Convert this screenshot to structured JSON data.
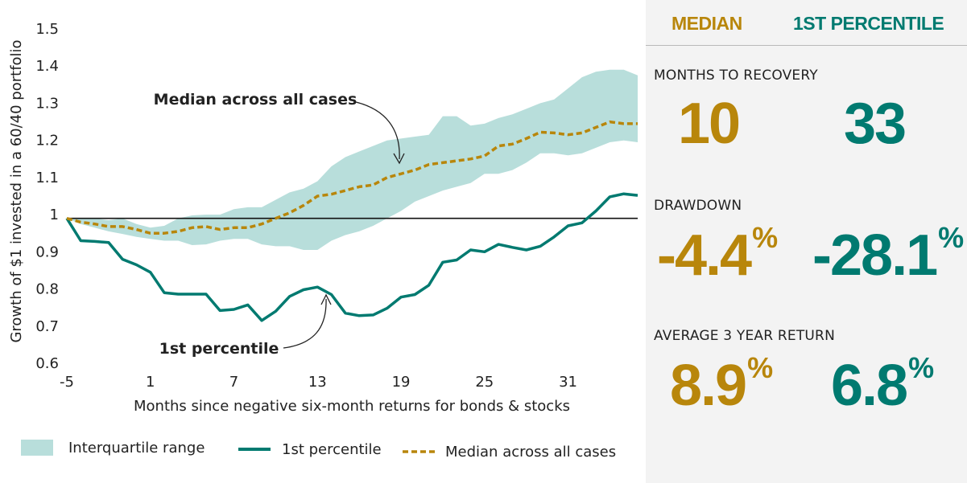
{
  "colors": {
    "median": "#b8860b",
    "percentile": "#007a70",
    "band": "#b8dedb",
    "ref_line": "#111111"
  },
  "chart_data": {
    "type": "line",
    "xlabel": "Months since negative six-month returns for bonds & stocks",
    "ylabel": "Growth of $1 invested in a 60/40 portfolio",
    "xlim": [
      -5,
      36
    ],
    "ylim": [
      0.6,
      1.5
    ],
    "x_ticks": [
      "-5",
      "1",
      "7",
      "13",
      "19",
      "25",
      "31"
    ],
    "y_ticks": [
      "0.6",
      "0.7",
      "0.8",
      "0.9",
      "1",
      "1.1",
      "1.2",
      "1.3",
      "1.4",
      "1.5"
    ],
    "reference_line": 0.99,
    "x": [
      -5,
      -4,
      -3,
      -2,
      -1,
      0,
      1,
      2,
      3,
      4,
      5,
      6,
      7,
      8,
      9,
      10,
      11,
      12,
      13,
      14,
      15,
      16,
      17,
      18,
      19,
      20,
      21,
      22,
      23,
      24,
      25,
      26,
      27,
      28,
      29,
      30,
      31,
      32,
      33,
      34,
      35,
      36
    ],
    "series": [
      {
        "name": "1st percentile",
        "style": "solid",
        "values": [
          0.99,
          0.93,
          0.928,
          0.925,
          0.88,
          0.865,
          0.845,
          0.79,
          0.786,
          0.786,
          0.786,
          0.742,
          0.745,
          0.757,
          0.715,
          0.74,
          0.78,
          0.798,
          0.805,
          0.785,
          0.735,
          0.728,
          0.73,
          0.748,
          0.778,
          0.785,
          0.81,
          0.872,
          0.878,
          0.905,
          0.9,
          0.92,
          0.912,
          0.905,
          0.915,
          0.94,
          0.97,
          0.978,
          1.01,
          1.048,
          1.056,
          1.052
        ]
      },
      {
        "name": "Median across all cases",
        "style": "dashed",
        "values": [
          0.99,
          0.98,
          0.975,
          0.968,
          0.968,
          0.96,
          0.95,
          0.95,
          0.955,
          0.965,
          0.968,
          0.96,
          0.965,
          0.965,
          0.975,
          0.99,
          1.005,
          1.025,
          1.05,
          1.055,
          1.065,
          1.075,
          1.08,
          1.1,
          1.11,
          1.12,
          1.135,
          1.14,
          1.145,
          1.15,
          1.158,
          1.185,
          1.19,
          1.205,
          1.222,
          1.22,
          1.215,
          1.22,
          1.235,
          1.25,
          1.245,
          1.245
        ]
      },
      {
        "name": "Interquartile range",
        "style": "band",
        "upper": [
          0.99,
          0.99,
          0.99,
          0.985,
          0.99,
          0.975,
          0.965,
          0.97,
          0.99,
          0.998,
          1.0,
          1.0,
          1.015,
          1.02,
          1.02,
          1.04,
          1.06,
          1.07,
          1.09,
          1.13,
          1.155,
          1.17,
          1.185,
          1.2,
          1.205,
          1.21,
          1.215,
          1.265,
          1.265,
          1.24,
          1.245,
          1.26,
          1.27,
          1.285,
          1.3,
          1.31,
          1.34,
          1.37,
          1.385,
          1.39,
          1.39,
          1.375
        ],
        "lower": [
          0.99,
          0.975,
          0.965,
          0.955,
          0.948,
          0.94,
          0.935,
          0.93,
          0.93,
          0.918,
          0.92,
          0.93,
          0.935,
          0.935,
          0.92,
          0.915,
          0.915,
          0.905,
          0.905,
          0.93,
          0.945,
          0.955,
          0.97,
          0.99,
          1.01,
          1.035,
          1.05,
          1.065,
          1.075,
          1.085,
          1.11,
          1.11,
          1.12,
          1.14,
          1.165,
          1.165,
          1.16,
          1.165,
          1.18,
          1.195,
          1.2,
          1.195
        ]
      }
    ],
    "annotations": [
      {
        "text": "Median across all cases",
        "x": 18.3,
        "y": 1.11
      },
      {
        "text": "1st percentile",
        "x": 14.0,
        "y": 0.785
      }
    ],
    "legend": {
      "position": "bottom",
      "items": [
        {
          "label": "Interquartile range",
          "kind": "band"
        },
        {
          "label": "1st percentile",
          "kind": "solid"
        },
        {
          "label": "Median across all cases",
          "kind": "dashed"
        }
      ]
    }
  },
  "panel": {
    "median_header": "MEDIAN",
    "percentile_header": "1ST PERCENTILE",
    "stats": [
      {
        "label": "MONTHS TO RECOVERY",
        "median": "10",
        "median_suffix": "",
        "percentile": "33",
        "percentile_suffix": ""
      },
      {
        "label": "DRAWDOWN",
        "median": "-4.4",
        "median_suffix": "%",
        "percentile": "-28.1",
        "percentile_suffix": "%"
      },
      {
        "label": "AVERAGE 3 YEAR RETURN",
        "median": "8.9",
        "median_suffix": "%",
        "percentile": "6.8",
        "percentile_suffix": "%"
      }
    ]
  }
}
